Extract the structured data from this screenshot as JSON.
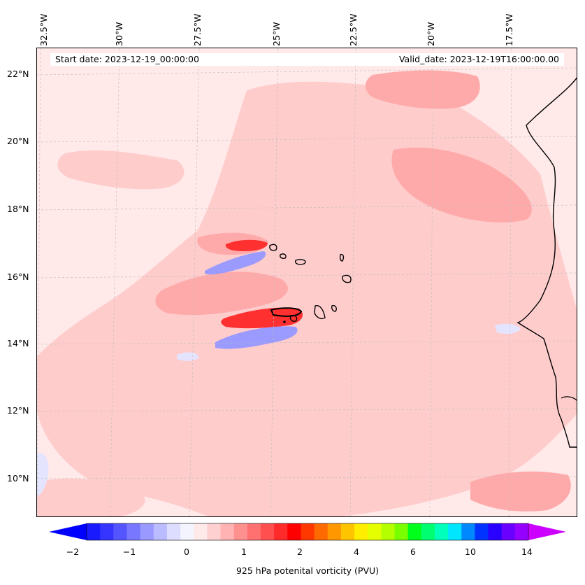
{
  "header": {
    "start_date": "Start date: 2023-12-19_00:00:00",
    "valid_date": "Valid_date: 2023-12-19T16:00:00.00"
  },
  "map": {
    "lon_labels": [
      "32.5°W",
      "30°W",
      "27.5°W",
      "25°W",
      "22.5°W",
      "20°W",
      "17.5°W"
    ],
    "lat_labels": [
      "22°N",
      "20°N",
      "18°N",
      "16°N",
      "14°N",
      "12°N",
      "10°N"
    ]
  },
  "colorbar": {
    "label": "925 hPa potenital vorticity (PVU)",
    "ticks": [
      "−2",
      "−1",
      "0",
      "1",
      "2",
      "4",
      "6",
      "10",
      "14"
    ],
    "colors": [
      "#1a1aff",
      "#3535ff",
      "#5555ff",
      "#7777ff",
      "#9999ff",
      "#bbbbff",
      "#ddddff",
      "#f4f4ff",
      "#ffe9e9",
      "#ffd0d0",
      "#ffb3b3",
      "#ff9090",
      "#ff7070",
      "#ff4f4f",
      "#ff2a2a",
      "#ff0000",
      "#ff3800",
      "#ff6a00",
      "#ff9800",
      "#ffc400",
      "#ffee00",
      "#e6ff00",
      "#b4ff00",
      "#7aff00",
      "#00ff1a",
      "#00ff70",
      "#00ffbb",
      "#00e6ff",
      "#0088ff",
      "#0033ff",
      "#2a00ff",
      "#6a00ff",
      "#9600ff"
    ],
    "under_color": "#0000ff",
    "over_color": "#cc00ff"
  },
  "features": {
    "colors": {
      "background_pv": "#ffe9e9",
      "weak_positive": "#ffcccc",
      "moderate_positive": "#ffaaaa",
      "strong_positive": "#ff3030",
      "weak_negative": "#e4e4ff",
      "moderate_negative": "#9a9aff",
      "coastline": "#000000"
    }
  }
}
